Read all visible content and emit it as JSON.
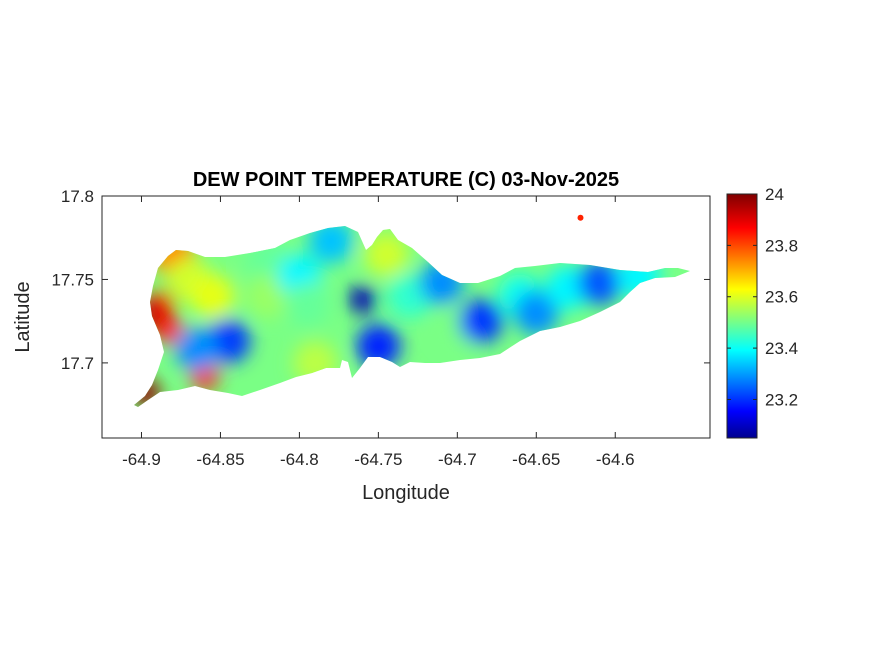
{
  "chart_data": {
    "type": "heatmap",
    "title": "DEW POINT TEMPERATURE (C) 03-Nov-2025",
    "xlabel": "Longitude",
    "ylabel": "Latitude",
    "xlim": [
      -64.925,
      -64.54
    ],
    "ylim": [
      17.655,
      17.8
    ],
    "x_ticks": [
      -64.9,
      -64.85,
      -64.8,
      -64.75,
      -64.7,
      -64.65,
      -64.6
    ],
    "x_tick_labels": [
      "-64.9",
      "-64.85",
      "-64.8",
      "-64.75",
      "-64.7",
      "-64.65",
      "-64.6"
    ],
    "y_ticks": [
      17.7,
      17.75,
      17.8
    ],
    "y_tick_labels": [
      "17.7",
      "17.75",
      "17.8"
    ],
    "colormap": "jet",
    "clim": [
      23.05,
      24.0
    ],
    "colorbar": {
      "ticks": [
        23.2,
        23.4,
        23.6,
        23.8,
        24.0
      ],
      "tick_labels": [
        "23.2",
        "23.4",
        "23.6",
        "23.8",
        "24"
      ]
    },
    "field_points": [
      {
        "lon": -64.893,
        "lat": 17.728,
        "value": 23.98
      },
      {
        "lon": -64.888,
        "lat": 17.735,
        "value": 23.9
      },
      {
        "lon": -64.883,
        "lat": 17.72,
        "value": 23.85
      },
      {
        "lon": -64.897,
        "lat": 17.682,
        "value": 23.98
      },
      {
        "lon": -64.86,
        "lat": 17.692,
        "value": 23.85
      },
      {
        "lon": -64.88,
        "lat": 17.765,
        "value": 23.75
      },
      {
        "lon": -64.87,
        "lat": 17.75,
        "value": 23.6
      },
      {
        "lon": -64.855,
        "lat": 17.74,
        "value": 23.62
      },
      {
        "lon": -64.845,
        "lat": 17.713,
        "value": 23.22
      },
      {
        "lon": -64.865,
        "lat": 17.708,
        "value": 23.3
      },
      {
        "lon": -64.82,
        "lat": 17.76,
        "value": 23.5
      },
      {
        "lon": -64.82,
        "lat": 17.74,
        "value": 23.55
      },
      {
        "lon": -64.8,
        "lat": 17.752,
        "value": 23.4
      },
      {
        "lon": -64.795,
        "lat": 17.735,
        "value": 23.5
      },
      {
        "lon": -64.79,
        "lat": 17.7,
        "value": 23.58
      },
      {
        "lon": -64.78,
        "lat": 17.773,
        "value": 23.35
      },
      {
        "lon": -64.76,
        "lat": 17.738,
        "value": 23.1
      },
      {
        "lon": -64.75,
        "lat": 17.71,
        "value": 23.2
      },
      {
        "lon": -64.745,
        "lat": 17.765,
        "value": 23.6
      },
      {
        "lon": -64.73,
        "lat": 17.74,
        "value": 23.45
      },
      {
        "lon": -64.71,
        "lat": 17.748,
        "value": 23.3
      },
      {
        "lon": -64.7,
        "lat": 17.72,
        "value": 23.52
      },
      {
        "lon": -64.685,
        "lat": 17.725,
        "value": 23.22
      },
      {
        "lon": -64.66,
        "lat": 17.74,
        "value": 23.42
      },
      {
        "lon": -64.65,
        "lat": 17.73,
        "value": 23.3
      },
      {
        "lon": -64.63,
        "lat": 17.745,
        "value": 23.4
      },
      {
        "lon": -64.61,
        "lat": 17.748,
        "value": 23.25
      },
      {
        "lon": -64.585,
        "lat": 17.752,
        "value": 23.4
      },
      {
        "lon": -64.622,
        "lat": 17.787,
        "value": 23.85
      }
    ]
  }
}
